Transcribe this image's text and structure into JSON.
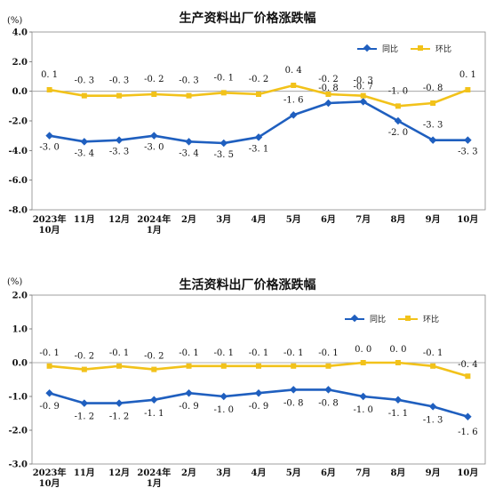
{
  "chart_data": [
    {
      "type": "line",
      "title": "生产资料出厂价格涨跌幅",
      "unit": "(%)",
      "categories": [
        "2023年\n10月",
        "11月",
        "12月",
        "2024年\n1月",
        "2月",
        "3月",
        "4月",
        "5月",
        "6月",
        "7月",
        "8月",
        "9月",
        "10月"
      ],
      "ylim": [
        -8.0,
        4.0
      ],
      "yticks": [
        "4.0",
        "2.0",
        "0.0",
        "-2.0",
        "-4.0",
        "-6.0",
        "-8.0"
      ],
      "ytick_values": [
        4,
        2,
        0,
        -2,
        -4,
        -6,
        -8
      ],
      "legend_position": "top-right",
      "series": [
        {
          "name": "同比",
          "color": "#1f5fbf",
          "values": [
            -3.0,
            -3.4,
            -3.3,
            -3.0,
            -3.4,
            -3.5,
            -3.1,
            -1.6,
            -0.8,
            -0.7,
            -2.0,
            -3.3,
            -3.3
          ],
          "labels": [
            "-3. 0",
            "-3. 4",
            "-3. 3",
            "-3. 0",
            "-3. 4",
            "-3. 5",
            "-3. 1",
            "-1. 6",
            "-0. 8",
            "-0. 7",
            "-2. 0",
            "-3. 3",
            "-3. 3"
          ]
        },
        {
          "name": "环比",
          "color": "#f2c21a",
          "values": [
            0.1,
            -0.3,
            -0.3,
            -0.2,
            -0.3,
            -0.1,
            -0.2,
            0.4,
            -0.2,
            -0.3,
            -1.0,
            -0.8,
            0.1
          ],
          "labels": [
            "0. 1",
            "-0. 3",
            "-0. 3",
            "-0. 2",
            "-0. 3",
            "-0. 1",
            "-0. 2",
            "0. 4",
            "-0. 2",
            "-0. 3",
            "-1. 0",
            "-0. 8",
            "0. 1"
          ]
        }
      ]
    },
    {
      "type": "line",
      "title": "生活资料出厂价格涨跌幅",
      "unit": "(%)",
      "categories": [
        "2023年\n10月",
        "11月",
        "12月",
        "2024年\n1月",
        "2月",
        "3月",
        "4月",
        "5月",
        "6月",
        "7月",
        "8月",
        "9月",
        "10月"
      ],
      "ylim": [
        -3.0,
        2.0
      ],
      "yticks": [
        "2.0",
        "1.0",
        "0.0",
        "-1.0",
        "-2.0",
        "-3.0"
      ],
      "ytick_values": [
        2,
        1,
        0,
        -1,
        -2,
        -3
      ],
      "legend_position": "top-right",
      "series": [
        {
          "name": "同比",
          "color": "#1f5fbf",
          "values": [
            -0.9,
            -1.2,
            -1.2,
            -1.1,
            -0.9,
            -1.0,
            -0.9,
            -0.8,
            -0.8,
            -1.0,
            -1.1,
            -1.3,
            -1.6
          ],
          "labels": [
            "-0. 9",
            "-1. 2",
            "-1. 2",
            "-1. 1",
            "-0. 9",
            "-1. 0",
            "-0. 9",
            "-0. 8",
            "-0. 8",
            "-1. 0",
            "-1. 1",
            "-1. 3",
            "-1. 6"
          ]
        },
        {
          "name": "环比",
          "color": "#f2c21a",
          "values": [
            -0.1,
            -0.2,
            -0.1,
            -0.2,
            -0.1,
            -0.1,
            -0.1,
            -0.1,
            -0.1,
            0.0,
            0.0,
            -0.1,
            -0.4
          ],
          "labels": [
            "-0. 1",
            "-0. 2",
            "-0. 1",
            "-0. 2",
            "-0. 1",
            "-0. 1",
            "-0. 1",
            "-0. 1",
            "-0. 1",
            "0. 0",
            "0. 0",
            "-0. 1",
            "-0. 4"
          ]
        }
      ]
    }
  ]
}
